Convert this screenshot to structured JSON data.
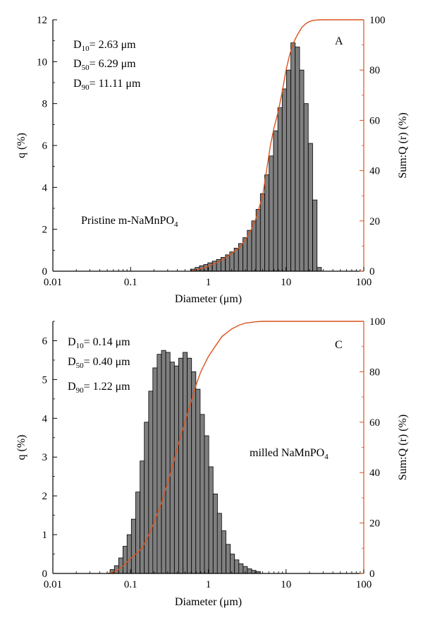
{
  "colors": {
    "bar_fill": "#7f7f7f",
    "bar_stroke": "#000000",
    "cumulative_line": "#d9531e",
    "axis": "#000000"
  },
  "chart_data": [
    {
      "type": "bar",
      "panel": "A",
      "x_scale": "log",
      "xlabel": "Diameter (μm)",
      "ylabel_left": "q (%)",
      "ylabel_right": "Sum:Q (r) (%)",
      "xlim": [
        0.01,
        100
      ],
      "ylim_left": [
        0,
        12
      ],
      "ylim_right": [
        0,
        100
      ],
      "x_ticks": [
        0.01,
        0.1,
        1,
        10,
        100
      ],
      "x_tick_labels": [
        "0.01",
        "0.1",
        "1",
        "10",
        "100"
      ],
      "y_ticks_left": [
        0,
        2,
        4,
        6,
        8,
        10,
        12
      ],
      "y_ticks_right": [
        0,
        20,
        40,
        60,
        80,
        100
      ],
      "sample_label": {
        "main": "Pristine m-NaMnPO",
        "sub": "4"
      },
      "stats": [
        {
          "prefix": "D",
          "sub": "10",
          "text": "= 2.63 μm"
        },
        {
          "prefix": "D",
          "sub": "50",
          "text": "= 6.29 μm"
        },
        {
          "prefix": "D",
          "sub": "90",
          "text": "= 11.11 μm"
        }
      ],
      "bins_per_decade": 18,
      "bins": {
        "x": [
          0.63,
          0.72,
          0.82,
          0.93,
          1.05,
          1.2,
          1.36,
          1.55,
          1.77,
          2.01,
          2.29,
          2.61,
          2.97,
          3.38,
          3.85,
          4.38,
          4.98,
          5.67,
          6.45,
          7.34,
          8.36,
          9.51,
          10.8,
          12.3,
          14.0,
          15.9,
          18.1,
          20.6,
          23.5,
          26.7
        ],
        "values": [
          0.1,
          0.18,
          0.26,
          0.32,
          0.4,
          0.48,
          0.56,
          0.66,
          0.78,
          0.92,
          1.1,
          1.32,
          1.6,
          1.95,
          2.4,
          2.95,
          3.7,
          4.6,
          5.5,
          6.7,
          7.8,
          8.7,
          9.6,
          10.9,
          10.7,
          9.6,
          8.0,
          6.1,
          3.4,
          0.18
        ]
      },
      "cumulative": {
        "x": [
          0.6,
          0.8,
          1,
          1.3,
          1.7,
          2,
          2.63,
          3,
          3.5,
          4,
          5,
          6.29,
          7,
          8,
          9,
          10,
          11.11,
          12.5,
          14,
          16,
          18,
          20,
          22,
          25,
          28,
          32,
          40,
          60,
          100
        ],
        "values": [
          0,
          1,
          2,
          3.5,
          5.5,
          7,
          10,
          12.5,
          16,
          20,
          30,
          50,
          57,
          64,
          72,
          80,
          86,
          91,
          94,
          97,
          98.5,
          99.3,
          99.7,
          99.9,
          100,
          100,
          100,
          100,
          100
        ]
      }
    },
    {
      "type": "bar",
      "panel": "C",
      "x_scale": "log",
      "xlabel": "Diameter (μm)",
      "ylabel_left": "q (%)",
      "ylabel_right": "Sum:Q (r) (%)",
      "xlim": [
        0.01,
        100
      ],
      "ylim_left": [
        0,
        6.5
      ],
      "ylim_right": [
        0,
        100
      ],
      "x_ticks": [
        0.01,
        0.1,
        1,
        10,
        100
      ],
      "x_tick_labels": [
        "0.01",
        "0.1",
        "1",
        "10",
        "100"
      ],
      "y_ticks_left": [
        0,
        1,
        2,
        3,
        4,
        5,
        6
      ],
      "y_ticks_right": [
        0,
        20,
        40,
        60,
        80,
        100
      ],
      "sample_label": {
        "main": "milled NaMnPO",
        "sub": "4"
      },
      "stats": [
        {
          "prefix": "D",
          "sub": "10",
          "text": "= 0.14 μm"
        },
        {
          "prefix": "D",
          "sub": "50",
          "text": "= 0.40 μm"
        },
        {
          "prefix": "D",
          "sub": "90",
          "text": "= 1.22 μm"
        }
      ],
      "bins_per_decade": 18,
      "bins": {
        "x": [
          0.058,
          0.066,
          0.075,
          0.085,
          0.096,
          0.109,
          0.124,
          0.141,
          0.16,
          0.182,
          0.206,
          0.234,
          0.266,
          0.302,
          0.343,
          0.39,
          0.443,
          0.503,
          0.571,
          0.648,
          0.736,
          0.836,
          0.95,
          1.08,
          1.23,
          1.39,
          1.58,
          1.8,
          2.04,
          2.32,
          2.63,
          2.99,
          3.39,
          3.85,
          4.38
        ],
        "values": [
          0.1,
          0.2,
          0.4,
          0.7,
          1.0,
          1.4,
          2.1,
          2.9,
          3.9,
          4.7,
          5.3,
          5.65,
          5.75,
          5.7,
          5.45,
          5.35,
          5.55,
          5.7,
          5.55,
          5.2,
          4.75,
          4.1,
          3.55,
          2.75,
          2.05,
          1.55,
          1.1,
          0.75,
          0.5,
          0.35,
          0.25,
          0.18,
          0.12,
          0.08,
          0.05
        ]
      },
      "cumulative": {
        "x": [
          0.05,
          0.06,
          0.07,
          0.08,
          0.1,
          0.12,
          0.14,
          0.17,
          0.2,
          0.25,
          0.3,
          0.35,
          0.4,
          0.5,
          0.6,
          0.7,
          0.8,
          1,
          1.22,
          1.5,
          2,
          2.5,
          3,
          4,
          5,
          7,
          10,
          30,
          100
        ],
        "values": [
          0,
          0.5,
          1.5,
          3,
          6,
          8,
          10,
          15,
          20,
          28,
          36,
          43,
          50,
          60,
          68,
          75,
          80,
          86,
          90,
          94,
          97,
          98.5,
          99.3,
          99.8,
          100,
          100,
          100,
          100,
          100
        ]
      }
    }
  ]
}
